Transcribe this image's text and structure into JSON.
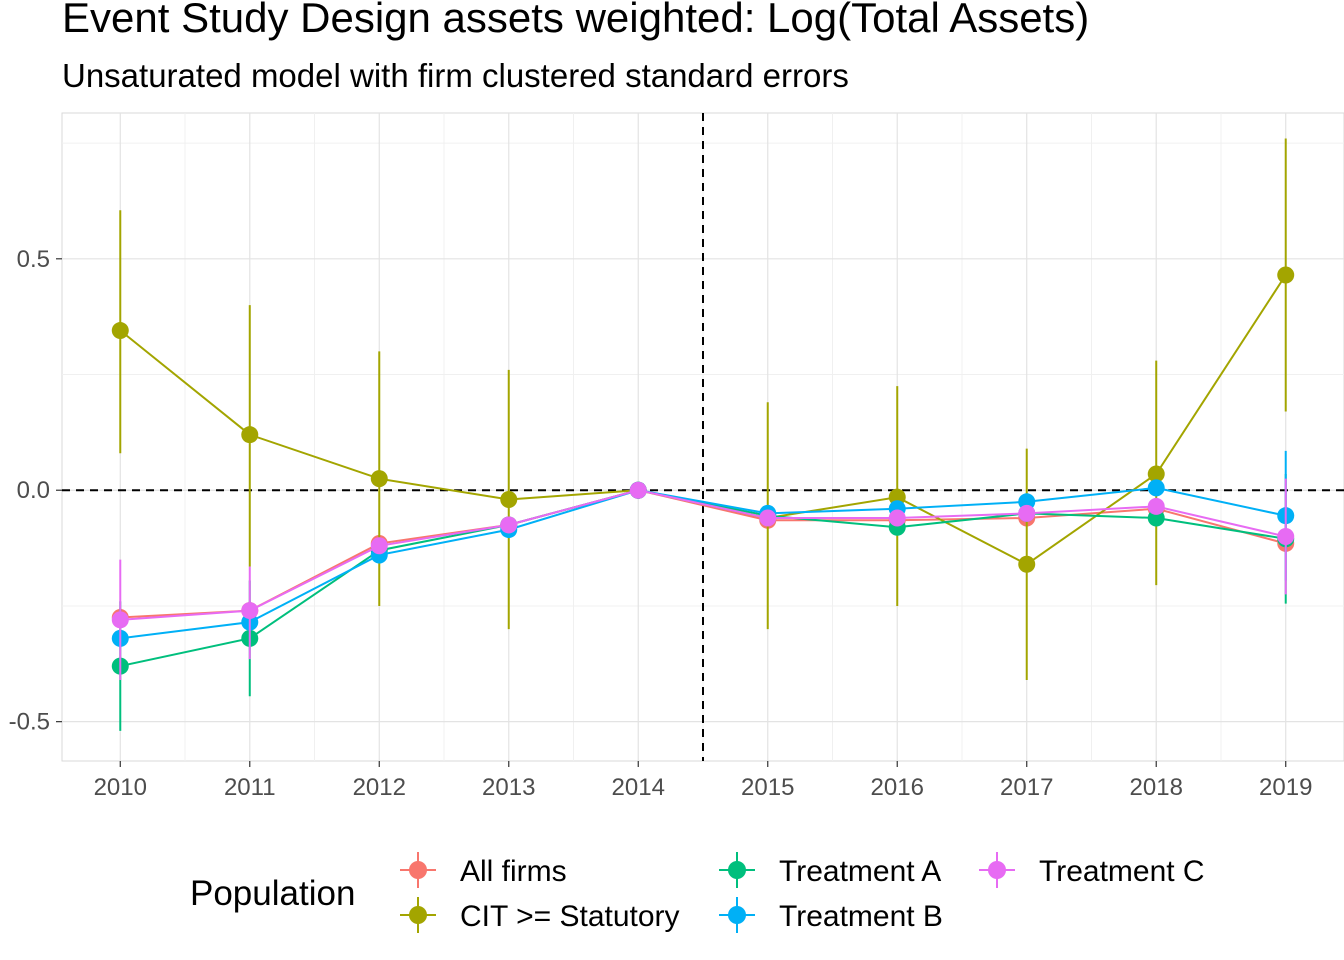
{
  "chart_data": {
    "type": "line",
    "title": "Event Study Design assets weighted: Log(Total Assets)",
    "subtitle": "Unsaturated model with firm clustered standard errors",
    "xlabel": "",
    "ylabel": "",
    "x": [
      2010,
      2011,
      2012,
      2013,
      2014,
      2015,
      2016,
      2017,
      2018,
      2019
    ],
    "x_tick_labels": [
      "2010",
      "2011",
      "2012",
      "2013",
      "2014",
      "2015",
      "2016",
      "2017",
      "2018",
      "2019"
    ],
    "y_ticks": [
      -0.5,
      0.0,
      0.5
    ],
    "y_tick_labels": [
      "-0.5",
      "0.0",
      "0.5"
    ],
    "xlim": [
      2009.55,
      2019.45
    ],
    "ylim": [
      -0.585,
      0.815
    ],
    "grid": true,
    "reference_lines": {
      "horizontal_y": 0.0,
      "vertical_x": 2014.5,
      "style": "dashed"
    },
    "legend": {
      "title": "Population",
      "position": "bottom"
    },
    "series": [
      {
        "name": "All firms",
        "color": "#F8766D",
        "values": [
          -0.275,
          -0.26,
          -0.115,
          -0.075,
          0.0,
          -0.065,
          -0.065,
          -0.06,
          -0.04,
          -0.115
        ],
        "lower": [
          -0.295,
          -0.28,
          -0.13,
          -0.09,
          0.0,
          -0.075,
          -0.075,
          -0.075,
          -0.05,
          -0.125
        ],
        "upper": [
          -0.255,
          -0.24,
          -0.1,
          -0.06,
          0.0,
          -0.055,
          -0.055,
          -0.045,
          -0.03,
          -0.105
        ]
      },
      {
        "name": "CIT >= Statutory",
        "color": "#A3A500",
        "values": [
          0.345,
          0.12,
          0.025,
          -0.02,
          0.0,
          -0.06,
          -0.015,
          -0.16,
          0.035,
          0.465
        ],
        "lower": [
          0.08,
          -0.165,
          -0.25,
          -0.3,
          0.0,
          -0.3,
          -0.25,
          -0.41,
          -0.205,
          0.17
        ],
        "upper": [
          0.605,
          0.4,
          0.3,
          0.26,
          0.0,
          0.19,
          0.225,
          0.09,
          0.28,
          0.76
        ]
      },
      {
        "name": "Treatment A",
        "color": "#00BF7D",
        "values": [
          -0.38,
          -0.32,
          -0.13,
          -0.075,
          0.0,
          -0.055,
          -0.08,
          -0.05,
          -0.06,
          -0.105
        ],
        "lower": [
          -0.52,
          -0.445,
          -0.155,
          -0.09,
          0.0,
          -0.065,
          -0.09,
          -0.06,
          -0.07,
          -0.245
        ],
        "upper": [
          -0.24,
          -0.195,
          -0.105,
          -0.06,
          0.0,
          -0.045,
          -0.07,
          -0.04,
          -0.05,
          0.035
        ]
      },
      {
        "name": "Treatment B",
        "color": "#00B0F6",
        "values": [
          -0.32,
          -0.285,
          -0.14,
          -0.085,
          0.0,
          -0.05,
          -0.04,
          -0.025,
          0.005,
          -0.055
        ],
        "lower": [
          -0.34,
          -0.3,
          -0.155,
          -0.1,
          0.0,
          -0.06,
          -0.05,
          -0.035,
          -0.005,
          -0.195
        ],
        "upper": [
          -0.3,
          -0.27,
          -0.125,
          -0.07,
          0.0,
          -0.04,
          -0.03,
          -0.015,
          0.015,
          0.085
        ]
      },
      {
        "name": "Treatment C",
        "color": "#E76BF3",
        "values": [
          -0.28,
          -0.26,
          -0.12,
          -0.075,
          0.0,
          -0.06,
          -0.06,
          -0.05,
          -0.035,
          -0.1
        ],
        "lower": [
          -0.41,
          -0.365,
          -0.135,
          -0.09,
          0.0,
          -0.07,
          -0.07,
          -0.06,
          -0.045,
          -0.225
        ],
        "upper": [
          -0.15,
          -0.165,
          -0.105,
          -0.06,
          0.0,
          -0.05,
          -0.05,
          -0.04,
          -0.025,
          0.025
        ]
      }
    ]
  }
}
